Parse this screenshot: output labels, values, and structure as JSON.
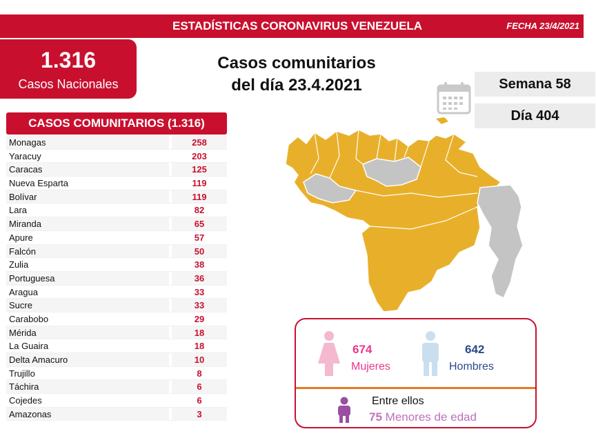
{
  "header": {
    "title": "ESTADÍSTICAS CORONAVIRUS VENEZUELA",
    "date": "FECHA 23/4/2021"
  },
  "national": {
    "value": "1.316",
    "label": "Casos Nacionales"
  },
  "main_title": {
    "line1": "Casos comunitarios",
    "line2": "del día 23.4.2021"
  },
  "week": "Semana 58",
  "day": "Día 404",
  "table": {
    "header": "CASOS COMUNITARIOS (1.316)",
    "rows": [
      {
        "state": "Monagas",
        "cases": "258"
      },
      {
        "state": "Yaracuy",
        "cases": "203"
      },
      {
        "state": "Caracas",
        "cases": "125"
      },
      {
        "state": "Nueva Esparta",
        "cases": "119"
      },
      {
        "state": "Bolívar",
        "cases": "119"
      },
      {
        "state": "Lara",
        "cases": "82"
      },
      {
        "state": "Miranda",
        "cases": "65"
      },
      {
        "state": "Apure",
        "cases": "57"
      },
      {
        "state": "Falcón",
        "cases": "50"
      },
      {
        "state": "Zulia",
        "cases": "38"
      },
      {
        "state": "Portuguesa",
        "cases": "36"
      },
      {
        "state": "Aragua",
        "cases": "33"
      },
      {
        "state": "Sucre",
        "cases": "33"
      },
      {
        "state": "Carabobo",
        "cases": "29"
      },
      {
        "state": "Mérida",
        "cases": "18"
      },
      {
        "state": "La Guaira",
        "cases": "18"
      },
      {
        "state": "Delta Amacuro",
        "cases": "10"
      },
      {
        "state": "Trujillo",
        "cases": "8"
      },
      {
        "state": "Táchira",
        "cases": "6"
      },
      {
        "state": "Cojedes",
        "cases": "6"
      },
      {
        "state": "Amazonas",
        "cases": "3"
      }
    ]
  },
  "demographics": {
    "women_count": "674",
    "women_label": "Mujeres",
    "men_count": "642",
    "men_label": "Hombres",
    "between_label": "Entre ellos",
    "minors_count": "75",
    "minors_label": "Menores de edad"
  },
  "colors": {
    "brand_red": "#c8102e",
    "map_affected": "#e8b02a",
    "map_unaffected": "#c4c4c4",
    "women": "#e8388a",
    "men": "#2a4a8a",
    "minors": "#c06fbf",
    "divider": "#e87722"
  },
  "icons": [
    "calendar-icon",
    "woman-icon",
    "man-icon",
    "child-icon",
    "venezuela-map"
  ]
}
